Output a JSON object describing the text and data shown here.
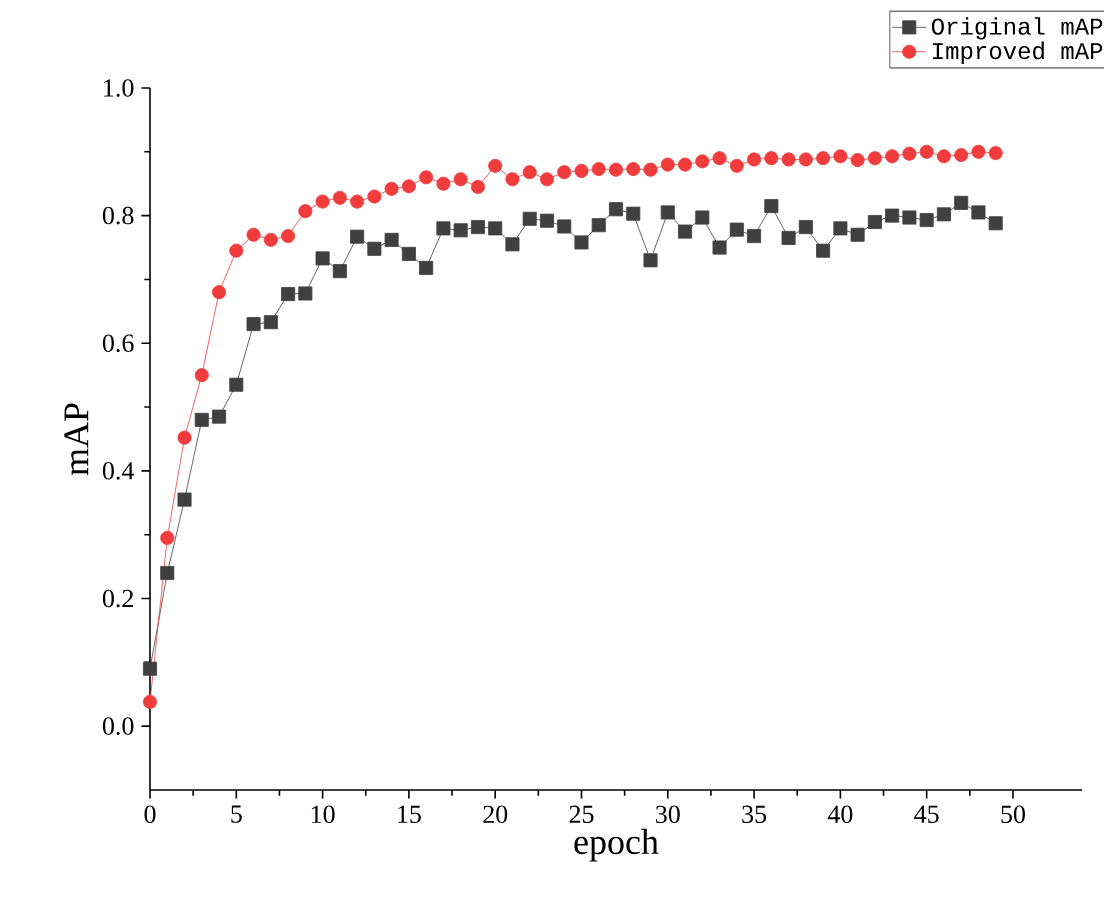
{
  "chart_data": {
    "type": "line",
    "xlabel": "epoch",
    "ylabel": "mAP",
    "x": [
      0,
      1,
      2,
      3,
      4,
      5,
      6,
      7,
      8,
      9,
      10,
      11,
      12,
      13,
      14,
      15,
      16,
      17,
      18,
      19,
      20,
      21,
      22,
      23,
      24,
      25,
      26,
      27,
      28,
      29,
      30,
      31,
      32,
      33,
      34,
      35,
      36,
      37,
      38,
      39,
      40,
      41,
      42,
      43,
      44,
      45,
      46,
      47,
      48,
      49
    ],
    "xlim": [
      0,
      54
    ],
    "xticks": [
      0,
      5,
      10,
      15,
      20,
      25,
      30,
      35,
      40,
      45,
      50
    ],
    "ylim": [
      -0.1,
      1.0
    ],
    "yticks": [
      {
        "value": 0,
        "label": "0.0"
      },
      0.2,
      0.4,
      0.6,
      0.8,
      {
        "value": 1,
        "label": "1.0"
      }
    ],
    "legend": "top right",
    "grid": false,
    "series": [
      {
        "name": "Original mAP",
        "color": "#404040",
        "marker": "square",
        "values": [
          0.09,
          0.24,
          0.355,
          0.48,
          0.485,
          0.535,
          0.63,
          0.633,
          0.677,
          0.678,
          0.733,
          0.713,
          0.767,
          0.748,
          0.762,
          0.74,
          0.718,
          0.78,
          0.777,
          0.782,
          0.78,
          0.755,
          0.795,
          0.792,
          0.783,
          0.758,
          0.785,
          0.81,
          0.803,
          0.73,
          0.805,
          0.775,
          0.797,
          0.75,
          0.778,
          0.768,
          0.815,
          0.765,
          0.782,
          0.745,
          0.78,
          0.77,
          0.79,
          0.8,
          0.797,
          0.793,
          0.802,
          0.82,
          0.805,
          0.788
        ]
      },
      {
        "name": "Improved mAP",
        "color": "#f03c3c",
        "marker": "circle",
        "values": [
          0.038,
          0.295,
          0.452,
          0.55,
          0.68,
          0.745,
          0.77,
          0.762,
          0.768,
          0.807,
          0.822,
          0.828,
          0.822,
          0.83,
          0.842,
          0.846,
          0.86,
          0.85,
          0.857,
          0.845,
          0.878,
          0.857,
          0.868,
          0.857,
          0.868,
          0.87,
          0.873,
          0.872,
          0.873,
          0.872,
          0.88,
          0.88,
          0.885,
          0.89,
          0.878,
          0.888,
          0.89,
          0.888,
          0.888,
          0.89,
          0.893,
          0.887,
          0.89,
          0.893,
          0.897,
          0.9,
          0.893,
          0.895,
          0.9,
          0.898
        ]
      }
    ]
  }
}
